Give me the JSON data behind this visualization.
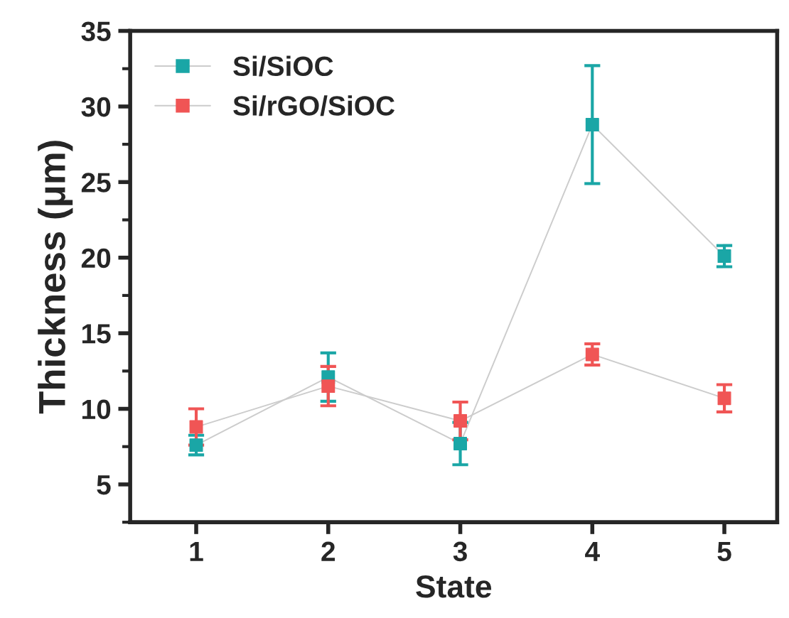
{
  "chart_data": {
    "type": "line",
    "xlabel": "State",
    "ylabel": "Thickness (μm)",
    "x": [
      1,
      2,
      3,
      4,
      5
    ],
    "series": [
      {
        "name": "Si/SiOC",
        "color": "#1aa6a6",
        "values": [
          7.6,
          12.1,
          7.7,
          28.8,
          20.1
        ],
        "errors": [
          0.65,
          1.6,
          1.4,
          3.9,
          0.7
        ]
      },
      {
        "name": "Si/rGO/SiOC",
        "color": "#f05555",
        "values": [
          8.8,
          11.5,
          9.2,
          13.6,
          10.7
        ],
        "errors": [
          1.2,
          1.3,
          1.25,
          0.7,
          0.9
        ]
      }
    ],
    "xlim": [
      0.5,
      5.4
    ],
    "xticks": [
      1,
      2,
      3,
      4,
      5
    ],
    "ylim": [
      2.5,
      35
    ],
    "yticks": [
      5,
      10,
      15,
      20,
      25,
      30,
      35
    ],
    "grid": false,
    "legend": "top left",
    "marker": "square",
    "line_style": "solid"
  }
}
